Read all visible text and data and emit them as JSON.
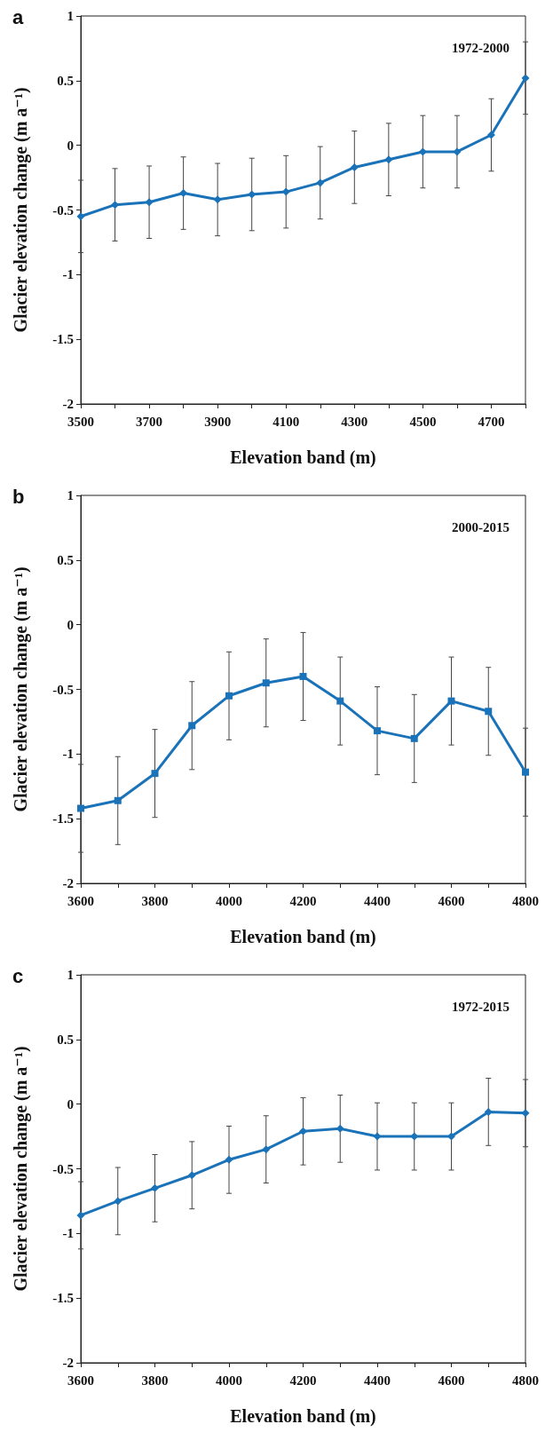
{
  "chart_data": [
    {
      "type": "line",
      "title": "a",
      "annotations": [
        "1972-2000"
      ],
      "xlabel": "Elevation band (m)",
      "ylabel": "Glacier elevation change (m a⁻¹)",
      "x": [
        3500,
        3600,
        3700,
        3800,
        3900,
        4000,
        4100,
        4200,
        4300,
        4400,
        4500,
        4600,
        4700,
        4800
      ],
      "series": [
        {
          "color": "#1a72b8",
          "values": [
            -0.55,
            -0.46,
            -0.44,
            -0.37,
            -0.42,
            -0.38,
            -0.36,
            -0.29,
            -0.17,
            -0.11,
            -0.05,
            -0.05,
            0.08,
            0.52
          ],
          "errors": [
            0.28,
            0.28,
            0.28,
            0.28,
            0.28,
            0.28,
            0.28,
            0.28,
            0.28,
            0.28,
            0.28,
            0.28,
            0.28,
            0.28
          ]
        }
      ],
      "xlim": [
        3500,
        4800
      ],
      "xticks": [
        3500,
        {
          "value": 3600,
          "label": null
        },
        3700,
        {
          "value": 3800,
          "label": null
        },
        3900,
        {
          "value": 4000,
          "label": null
        },
        4100,
        {
          "value": 4200,
          "label": null
        },
        4300,
        {
          "value": 4400,
          "label": null
        },
        4500,
        {
          "value": 4600,
          "label": null
        },
        4700,
        {
          "value": 4800,
          "label": null
        }
      ],
      "ylim": [
        -2,
        1
      ],
      "yticks": [
        -2,
        -1.5,
        -1,
        -0.5,
        0,
        0.5,
        1
      ],
      "grid": false,
      "marker": "diamond",
      "line_style": "solid"
    },
    {
      "type": "line",
      "title": "b",
      "annotations": [
        "2000-2015"
      ],
      "xlabel": "Elevation band (m)",
      "ylabel": "Glacier elevation change (m a⁻¹)",
      "x": [
        3600,
        3700,
        3800,
        3900,
        4000,
        4100,
        4200,
        4300,
        4400,
        4500,
        4600,
        4700,
        4800
      ],
      "series": [
        {
          "color": "#1a72b8",
          "values": [
            -1.42,
            -1.36,
            -1.15,
            -0.78,
            -0.55,
            -0.45,
            -0.4,
            -0.59,
            -0.82,
            -0.88,
            -0.59,
            -0.67,
            -1.14
          ],
          "errors": [
            0.34,
            0.34,
            0.34,
            0.34,
            0.34,
            0.34,
            0.34,
            0.34,
            0.34,
            0.34,
            0.34,
            0.34,
            0.34
          ]
        }
      ],
      "xlim": [
        3600,
        4800
      ],
      "xticks": [
        3600,
        {
          "value": 3700,
          "label": null
        },
        3800,
        {
          "value": 3900,
          "label": null
        },
        4000,
        {
          "value": 4100,
          "label": null
        },
        4200,
        {
          "value": 4300,
          "label": null
        },
        4400,
        {
          "value": 4500,
          "label": null
        },
        4600,
        {
          "value": 4700,
          "label": null
        },
        4800
      ],
      "ylim": [
        -2,
        1
      ],
      "yticks": [
        -2,
        -1.5,
        -1,
        -0.5,
        0,
        0.5,
        1
      ],
      "grid": false,
      "marker": "square",
      "line_style": "solid"
    },
    {
      "type": "line",
      "title": "c",
      "annotations": [
        "1972-2015"
      ],
      "xlabel": "Elevation band (m)",
      "ylabel": "Glacier elevation change (m a⁻¹)",
      "x": [
        3600,
        3700,
        3800,
        3900,
        4000,
        4100,
        4200,
        4300,
        4400,
        4500,
        4600,
        4700,
        4800
      ],
      "series": [
        {
          "color": "#1a72b8",
          "values": [
            -0.86,
            -0.75,
            -0.65,
            -0.55,
            -0.43,
            -0.35,
            -0.21,
            -0.19,
            -0.25,
            -0.25,
            -0.25,
            -0.06,
            -0.07
          ],
          "errors": [
            0.26,
            0.26,
            0.26,
            0.26,
            0.26,
            0.26,
            0.26,
            0.26,
            0.26,
            0.26,
            0.26,
            0.26,
            0.26
          ]
        }
      ],
      "xlim": [
        3600,
        4800
      ],
      "xticks": [
        3600,
        {
          "value": 3700,
          "label": null
        },
        3800,
        {
          "value": 3900,
          "label": null
        },
        4000,
        {
          "value": 4100,
          "label": null
        },
        4200,
        {
          "value": 4300,
          "label": null
        },
        4400,
        {
          "value": 4500,
          "label": null
        },
        4600,
        {
          "value": 4700,
          "label": null
        },
        4800
      ],
      "ylim": [
        -2,
        1
      ],
      "yticks": [
        -2,
        -1.5,
        -1,
        -0.5,
        0,
        0.5,
        1
      ],
      "grid": false,
      "marker": "diamond",
      "line_style": "solid"
    }
  ]
}
